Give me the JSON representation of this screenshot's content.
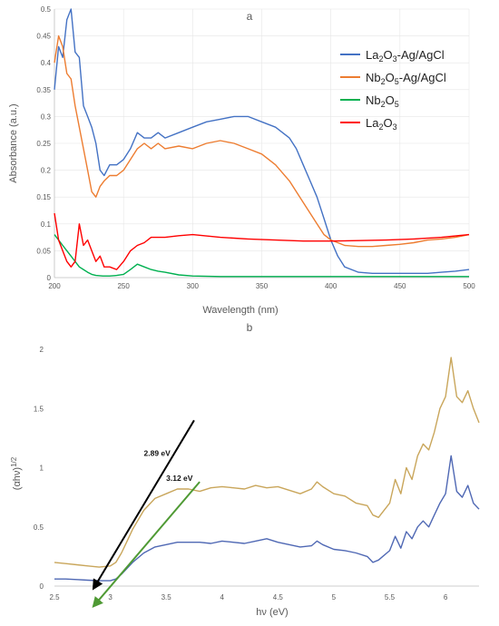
{
  "chart_data": [
    {
      "id": "a",
      "type": "line",
      "title": "a",
      "xlabel": "Wavelength (nm)",
      "ylabel": "Absorbance (a.u.)",
      "xlim": [
        200,
        500
      ],
      "ylim": [
        0,
        0.5
      ],
      "xticks": [
        200,
        250,
        300,
        350,
        400,
        450,
        500
      ],
      "yticks": [
        0,
        0.05,
        0.1,
        0.15,
        0.2,
        0.25,
        0.3,
        0.35,
        0.4,
        0.45,
        0.5
      ],
      "ytick_labels": [
        "0",
        "0.05",
        "0.1",
        "0.15",
        "0.2",
        "0.25",
        "0.3",
        "0.35",
        "0.4",
        "0.45",
        "0.5"
      ],
      "grid": true,
      "legend": "top-right",
      "series": [
        {
          "name": "La2O3-Ag/AgCl",
          "legend_base": "La",
          "legend_sub1": "2",
          "legend_mid": "O",
          "legend_sub2": "3",
          "legend_tail": "-Ag/AgCl",
          "color": "#4472c4",
          "x": [
            200,
            203,
            206,
            209,
            212,
            215,
            218,
            221,
            224,
            227,
            230,
            233,
            236,
            240,
            245,
            250,
            255,
            260,
            265,
            270,
            275,
            280,
            290,
            300,
            310,
            320,
            330,
            340,
            350,
            360,
            370,
            375,
            380,
            385,
            390,
            395,
            400,
            405,
            410,
            420,
            430,
            440,
            450,
            460,
            470,
            480,
            490,
            500
          ],
          "y": [
            0.35,
            0.43,
            0.41,
            0.48,
            0.5,
            0.42,
            0.41,
            0.32,
            0.3,
            0.28,
            0.25,
            0.2,
            0.19,
            0.21,
            0.21,
            0.22,
            0.24,
            0.27,
            0.26,
            0.26,
            0.27,
            0.26,
            0.27,
            0.28,
            0.29,
            0.295,
            0.3,
            0.3,
            0.29,
            0.28,
            0.26,
            0.24,
            0.21,
            0.18,
            0.15,
            0.11,
            0.07,
            0.04,
            0.02,
            0.01,
            0.008,
            0.008,
            0.008,
            0.008,
            0.008,
            0.01,
            0.012,
            0.015
          ]
        },
        {
          "name": "Nb2O5-Ag/AgCl",
          "legend_base": "Nb",
          "legend_sub1": "2",
          "legend_mid": "O",
          "legend_sub2": "5",
          "legend_tail": "-Ag/AgCl",
          "color": "#ed7d31",
          "x": [
            200,
            203,
            206,
            209,
            212,
            215,
            218,
            221,
            224,
            227,
            230,
            233,
            236,
            240,
            245,
            250,
            255,
            260,
            265,
            270,
            275,
            280,
            290,
            300,
            310,
            320,
            330,
            340,
            350,
            360,
            370,
            380,
            390,
            395,
            400,
            405,
            410,
            420,
            430,
            440,
            450,
            460,
            470,
            480,
            490,
            500
          ],
          "y": [
            0.4,
            0.45,
            0.43,
            0.38,
            0.37,
            0.32,
            0.28,
            0.24,
            0.2,
            0.16,
            0.15,
            0.17,
            0.18,
            0.19,
            0.19,
            0.2,
            0.22,
            0.24,
            0.25,
            0.24,
            0.25,
            0.24,
            0.245,
            0.24,
            0.25,
            0.255,
            0.25,
            0.24,
            0.23,
            0.21,
            0.18,
            0.14,
            0.1,
            0.08,
            0.07,
            0.065,
            0.06,
            0.058,
            0.058,
            0.06,
            0.062,
            0.065,
            0.07,
            0.072,
            0.075,
            0.08
          ]
        },
        {
          "name": "Nb2O5",
          "legend_base": "Nb",
          "legend_sub1": "2",
          "legend_mid": "O",
          "legend_sub2": "5",
          "legend_tail": "",
          "color": "#00b050",
          "x": [
            200,
            203,
            206,
            209,
            212,
            215,
            218,
            221,
            224,
            227,
            230,
            235,
            240,
            245,
            250,
            255,
            260,
            265,
            270,
            275,
            280,
            290,
            300,
            320,
            340,
            360,
            380,
            400,
            420,
            440,
            460,
            480,
            500
          ],
          "y": [
            0.08,
            0.07,
            0.06,
            0.05,
            0.04,
            0.03,
            0.02,
            0.015,
            0.01,
            0.006,
            0.004,
            0.003,
            0.003,
            0.004,
            0.006,
            0.015,
            0.025,
            0.02,
            0.015,
            0.012,
            0.01,
            0.005,
            0.003,
            0.002,
            0.002,
            0.002,
            0.002,
            0.002,
            0.002,
            0.002,
            0.002,
            0.002,
            0.002
          ]
        },
        {
          "name": "La2O3",
          "legend_base": "La",
          "legend_sub1": "2",
          "legend_mid": "O",
          "legend_sub2": "3",
          "legend_tail": "",
          "color": "#ff0000",
          "x": [
            200,
            203,
            206,
            209,
            212,
            215,
            218,
            221,
            224,
            227,
            230,
            233,
            236,
            240,
            245,
            250,
            255,
            260,
            265,
            270,
            280,
            290,
            300,
            320,
            340,
            360,
            380,
            400,
            420,
            440,
            460,
            480,
            500
          ],
          "y": [
            0.12,
            0.07,
            0.05,
            0.03,
            0.02,
            0.03,
            0.1,
            0.06,
            0.07,
            0.05,
            0.03,
            0.04,
            0.02,
            0.02,
            0.015,
            0.03,
            0.05,
            0.06,
            0.065,
            0.075,
            0.075,
            0.078,
            0.08,
            0.075,
            0.072,
            0.07,
            0.068,
            0.068,
            0.069,
            0.07,
            0.072,
            0.075,
            0.08
          ]
        }
      ]
    },
    {
      "id": "b",
      "type": "line",
      "title": "b",
      "xlabel": "hν (eV)",
      "ylabel_main": "(αhν)",
      "ylabel_sup": "1/2",
      "xlim": [
        2.5,
        6.3
      ],
      "ylim": [
        0,
        2
      ],
      "xticks": [
        2.5,
        3,
        3.5,
        4,
        4.5,
        5,
        5.5,
        6
      ],
      "xtick_labels": [
        "2.5",
        "3",
        "3.5",
        "4",
        "4.5",
        "5",
        "5.5",
        "6"
      ],
      "yticks": [
        0,
        0.5,
        1,
        1.5,
        2
      ],
      "ytick_labels": [
        "0",
        "0.5",
        "1",
        "1.5",
        "2"
      ],
      "grid": false,
      "series": [
        {
          "color": "#c9a65b",
          "x": [
            2.5,
            2.6,
            2.7,
            2.8,
            2.9,
            3.0,
            3.05,
            3.1,
            3.15,
            3.2,
            3.3,
            3.4,
            3.5,
            3.6,
            3.7,
            3.8,
            3.9,
            4.0,
            4.1,
            4.2,
            4.3,
            4.4,
            4.5,
            4.6,
            4.7,
            4.8,
            4.85,
            4.9,
            5.0,
            5.1,
            5.2,
            5.3,
            5.35,
            5.4,
            5.5,
            5.55,
            5.6,
            5.65,
            5.7,
            5.75,
            5.8,
            5.85,
            5.9,
            5.95,
            6.0,
            6.05,
            6.1,
            6.15,
            6.2,
            6.25,
            6.3
          ],
          "y": [
            0.2,
            0.19,
            0.18,
            0.17,
            0.16,
            0.17,
            0.2,
            0.28,
            0.38,
            0.48,
            0.64,
            0.74,
            0.78,
            0.82,
            0.82,
            0.8,
            0.83,
            0.84,
            0.83,
            0.82,
            0.85,
            0.83,
            0.84,
            0.81,
            0.78,
            0.82,
            0.88,
            0.84,
            0.78,
            0.76,
            0.7,
            0.68,
            0.6,
            0.58,
            0.7,
            0.9,
            0.78,
            1.0,
            0.9,
            1.1,
            1.2,
            1.15,
            1.3,
            1.5,
            1.6,
            1.93,
            1.6,
            1.55,
            1.65,
            1.5,
            1.38
          ]
        },
        {
          "color": "#4f68b4",
          "x": [
            2.5,
            2.6,
            2.7,
            2.8,
            2.9,
            3.0,
            3.05,
            3.1,
            3.2,
            3.3,
            3.4,
            3.5,
            3.6,
            3.7,
            3.8,
            3.9,
            4.0,
            4.1,
            4.2,
            4.3,
            4.4,
            4.5,
            4.6,
            4.7,
            4.8,
            4.85,
            4.9,
            5.0,
            5.1,
            5.2,
            5.3,
            5.35,
            5.4,
            5.5,
            5.55,
            5.6,
            5.65,
            5.7,
            5.75,
            5.8,
            5.85,
            5.9,
            5.95,
            6.0,
            6.05,
            6.1,
            6.15,
            6.2,
            6.25,
            6.3
          ],
          "y": [
            0.06,
            0.06,
            0.055,
            0.05,
            0.045,
            0.045,
            0.06,
            0.1,
            0.2,
            0.28,
            0.33,
            0.35,
            0.37,
            0.37,
            0.37,
            0.36,
            0.38,
            0.37,
            0.36,
            0.38,
            0.4,
            0.37,
            0.35,
            0.33,
            0.34,
            0.38,
            0.35,
            0.31,
            0.3,
            0.28,
            0.25,
            0.2,
            0.22,
            0.3,
            0.42,
            0.32,
            0.46,
            0.4,
            0.5,
            0.55,
            0.5,
            0.6,
            0.7,
            0.78,
            1.1,
            0.8,
            0.75,
            0.85,
            0.7,
            0.65
          ]
        }
      ],
      "annotations": [
        {
          "text": "2.89 eV",
          "color": "#000000",
          "line": [
            [
              3.75,
              1.4
            ],
            [
              2.85,
              -0.02
            ]
          ],
          "label_at": [
            3.3,
            1.1
          ]
        },
        {
          "text": "3.12 eV",
          "color": "#4f9a34",
          "line": [
            [
              3.8,
              0.88
            ],
            [
              2.85,
              -0.17
            ]
          ],
          "label_at": [
            3.5,
            0.89
          ]
        }
      ]
    }
  ]
}
